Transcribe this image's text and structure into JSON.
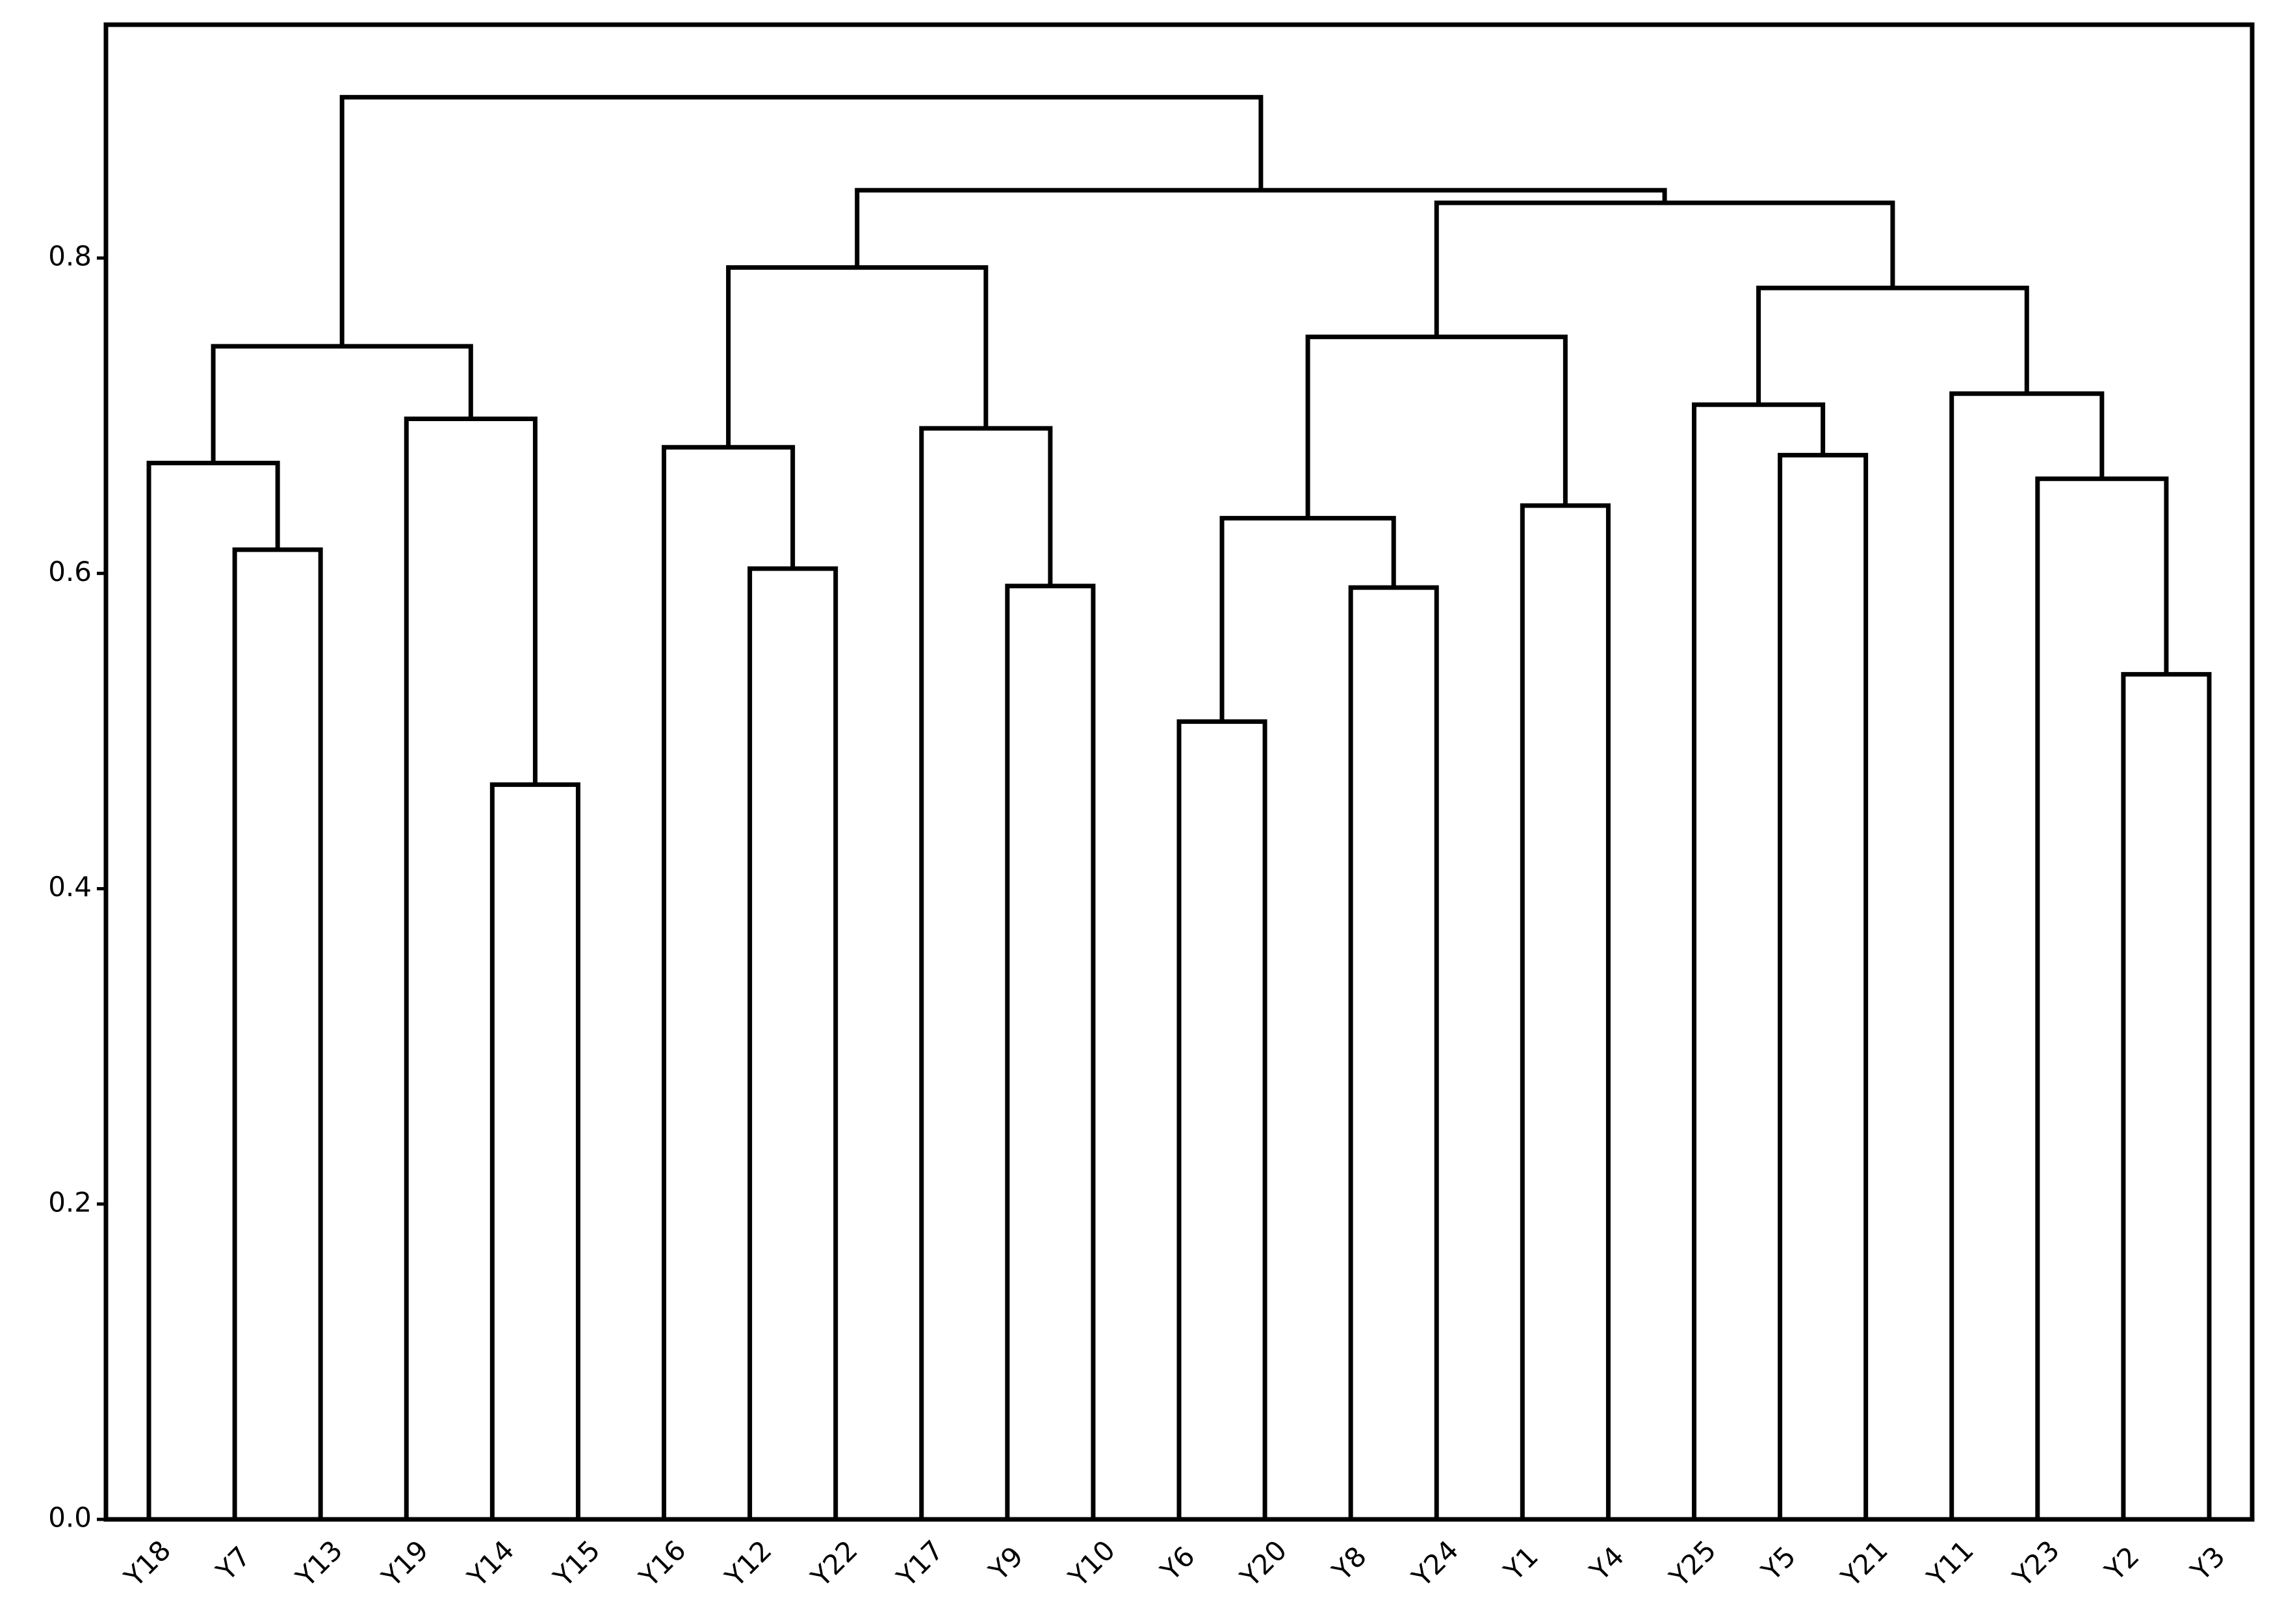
{
  "chart_data": {
    "type": "dendrogram",
    "color": "#000000",
    "leaves": [
      "Y18",
      "Y7",
      "Y13",
      "Y19",
      "Y14",
      "Y15",
      "Y16",
      "Y12",
      "Y22",
      "Y17",
      "Y9",
      "Y10",
      "Y6",
      "Y20",
      "Y8",
      "Y24",
      "Y1",
      "Y4",
      "Y25",
      "Y5",
      "Y21",
      "Y11",
      "Y23",
      "Y2",
      "Y3"
    ],
    "merges": [
      {
        "children": [
          1,
          2
        ],
        "height": 0.615
      },
      {
        "children": [
          0,
          25
        ],
        "height": 0.67
      },
      {
        "children": [
          4,
          5
        ],
        "height": 0.466
      },
      {
        "children": [
          3,
          27
        ],
        "height": 0.698
      },
      {
        "children": [
          26,
          28
        ],
        "height": 0.744
      },
      {
        "children": [
          7,
          8
        ],
        "height": 0.603
      },
      {
        "children": [
          6,
          30
        ],
        "height": 0.68
      },
      {
        "children": [
          10,
          11
        ],
        "height": 0.592
      },
      {
        "children": [
          9,
          32
        ],
        "height": 0.692
      },
      {
        "children": [
          31,
          33
        ],
        "height": 0.794
      },
      {
        "children": [
          12,
          13
        ],
        "height": 0.506
      },
      {
        "children": [
          14,
          15
        ],
        "height": 0.591
      },
      {
        "children": [
          35,
          36
        ],
        "height": 0.635
      },
      {
        "children": [
          16,
          17
        ],
        "height": 0.643
      },
      {
        "children": [
          37,
          38
        ],
        "height": 0.75
      },
      {
        "children": [
          19,
          20
        ],
        "height": 0.675
      },
      {
        "children": [
          18,
          40
        ],
        "height": 0.707
      },
      {
        "children": [
          23,
          24
        ],
        "height": 0.536
      },
      {
        "children": [
          22,
          42
        ],
        "height": 0.66
      },
      {
        "children": [
          21,
          43
        ],
        "height": 0.714
      },
      {
        "children": [
          41,
          44
        ],
        "height": 0.781
      },
      {
        "children": [
          39,
          45
        ],
        "height": 0.835
      },
      {
        "children": [
          34,
          46
        ],
        "height": 0.843
      },
      {
        "children": [
          29,
          47
        ],
        "height": 0.902
      }
    ],
    "ylim": [
      0,
      0.948
    ],
    "yticks": [
      {
        "value": 0,
        "label": "0.0"
      },
      0.2,
      0.4,
      0.6,
      0.8
    ]
  }
}
